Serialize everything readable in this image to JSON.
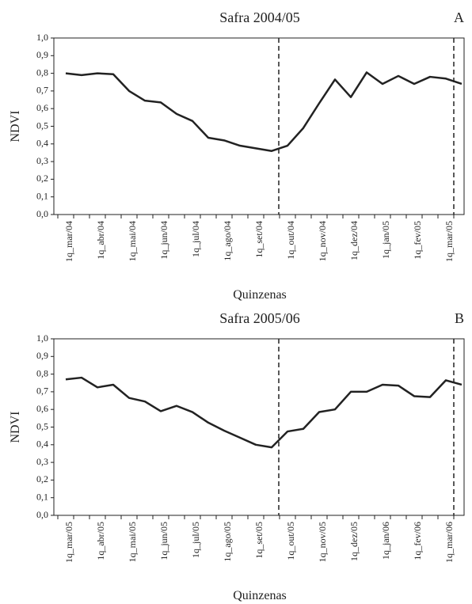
{
  "chart_data": [
    {
      "type": "line",
      "title": "Safra 2004/05",
      "panel": "A",
      "x_label": "Quinzenas",
      "y_label": "NDVI",
      "categories": [
        "1q_mar/04",
        null,
        "1q_abr/04",
        null,
        "1q_mai/04",
        null,
        "1q_jun/04",
        null,
        "1q_jul/04",
        null,
        "1q_ago/04",
        null,
        "1q_set/04",
        null,
        "1q_out/04",
        null,
        "1q_nov/04",
        null,
        "1q_dez/04",
        null,
        "1q_jan/05",
        null,
        "1q_fev/05",
        null,
        "1q_mar/05",
        null
      ],
      "series": [
        {
          "color": "#222222",
          "values": [
            0.8,
            0.79,
            0.8,
            0.795,
            0.7,
            0.645,
            0.635,
            0.57,
            0.53,
            0.435,
            0.42,
            0.39,
            0.375,
            0.36,
            0.39,
            0.49,
            0.63,
            0.765,
            0.665,
            0.805,
            0.74,
            0.785,
            0.74,
            0.78,
            0.77,
            0.74
          ]
        }
      ],
      "ylim": [
        0,
        1
      ],
      "yticks": [
        {
          "value": 0,
          "label": "0,0"
        },
        {
          "value": 0.1,
          "label": "0,1"
        },
        {
          "value": 0.2,
          "label": "0,2"
        },
        {
          "value": 0.3,
          "label": "0,3"
        },
        {
          "value": 0.4,
          "label": "0,4"
        },
        {
          "value": 0.5,
          "label": "0,5"
        },
        {
          "value": 0.6,
          "label": "0,6"
        },
        {
          "value": 0.7,
          "label": "0,7"
        },
        {
          "value": 0.8,
          "label": "0,8"
        },
        {
          "value": 0.9,
          "label": "0,9"
        },
        {
          "value": 1,
          "label": "1,0"
        }
      ]
    },
    {
      "type": "line",
      "title": "Safra 2005/06",
      "panel": "B",
      "x_label": "Quinzenas",
      "y_label": "NDVI",
      "categories": [
        "1q_mar/05",
        null,
        "1q_abr/05",
        null,
        "1q_mai/05",
        null,
        "1q_jun/05",
        null,
        "1q_jul/05",
        null,
        "1q_ago/05",
        null,
        "1q_set/05",
        null,
        "1q_out/05",
        null,
        "1q_nov/05",
        null,
        "1q_dez/05",
        null,
        "1q_jan/06",
        null,
        "1q_fev/06",
        null,
        "1q_mar/06",
        null
      ],
      "series": [
        {
          "color": "#222222",
          "values": [
            0.77,
            0.78,
            0.725,
            0.74,
            0.665,
            0.645,
            0.59,
            0.62,
            0.585,
            0.525,
            0.48,
            0.44,
            0.4,
            0.385,
            0.475,
            0.49,
            0.585,
            0.6,
            0.7,
            0.7,
            0.74,
            0.735,
            0.675,
            0.67,
            0.765,
            0.74
          ]
        }
      ],
      "ylim": [
        0,
        1
      ],
      "yticks": [
        {
          "value": 0,
          "label": "0,0"
        },
        {
          "value": 0.1,
          "label": "0,1"
        },
        {
          "value": 0.2,
          "label": "0,2"
        },
        {
          "value": 0.3,
          "label": "0,3"
        },
        {
          "value": 0.4,
          "label": "0,4"
        },
        {
          "value": 0.5,
          "label": "0,5"
        },
        {
          "value": 0.6,
          "label": "0,6"
        },
        {
          "value": 0.7,
          "label": "0,7"
        },
        {
          "value": 0.8,
          "label": "0,8"
        },
        {
          "value": 0.9,
          "label": "0,9"
        },
        {
          "value": 1,
          "label": "1,0"
        }
      ]
    }
  ]
}
